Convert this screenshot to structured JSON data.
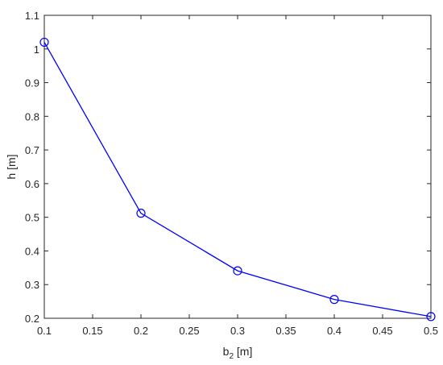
{
  "chart_data": {
    "type": "line",
    "x": [
      0.1,
      0.2,
      0.3,
      0.4,
      0.5
    ],
    "series": [
      {
        "values": [
          1.02,
          0.512,
          0.341,
          0.256,
          0.205
        ],
        "color": "#0000ff",
        "marker": "circle"
      }
    ],
    "xlabel": {
      "main": "b",
      "sub": "2",
      "unit": " [m]"
    },
    "ylabel": "h [m]",
    "xlim": [
      0.1,
      0.5
    ],
    "ylim": [
      0.2,
      1.1
    ],
    "xticks": [
      0.1,
      0.15,
      0.2,
      0.25,
      0.3,
      0.35,
      0.4,
      0.45,
      0.5
    ],
    "xtick_labels": [
      "0.1",
      "0.15",
      "0.2",
      "0.25",
      "0.3",
      "0.35",
      "0.4",
      "0.45",
      "0.5"
    ],
    "yticks": [
      0.2,
      0.3,
      0.4,
      0.5,
      0.6,
      0.7,
      0.8,
      0.9,
      1,
      1.1
    ],
    "ytick_labels": [
      "0.2",
      "0.3",
      "0.4",
      "0.5",
      "0.6",
      "0.7",
      "0.8",
      "0.9",
      "1",
      "1.1"
    ],
    "grid": false,
    "legend": "none",
    "axis_color": "#262626"
  }
}
